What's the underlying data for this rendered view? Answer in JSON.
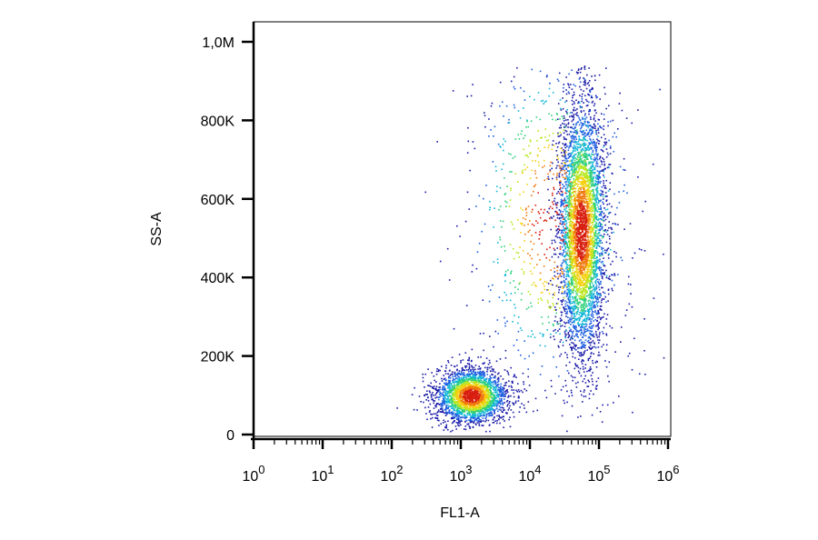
{
  "chart_data": {
    "type": "scatter",
    "subtype": "flow-cytometry-density-dot-plot",
    "xlabel": "FL1-A",
    "ylabel": "SS-A",
    "x_scale": "log",
    "y_scale": "linear",
    "xlim": [
      1,
      1000000
    ],
    "ylim": [
      0,
      1000000
    ],
    "x_tick_values": [
      1,
      10,
      100,
      1000,
      10000,
      100000,
      1000000
    ],
    "x_tick_labels": [
      {
        "base": "10",
        "exp": "0"
      },
      {
        "base": "10",
        "exp": "1"
      },
      {
        "base": "10",
        "exp": "2"
      },
      {
        "base": "10",
        "exp": "3"
      },
      {
        "base": "10",
        "exp": "4"
      },
      {
        "base": "10",
        "exp": "5"
      },
      {
        "base": "10",
        "exp": "6"
      }
    ],
    "y_tick_values": [
      0,
      200000,
      400000,
      600000,
      800000,
      1000000
    ],
    "y_tick_labels": [
      "0",
      "200K",
      "400K",
      "600K",
      "800K",
      "1,0M"
    ],
    "grid": false,
    "density_colormap": [
      "#1a1aa8",
      "#1f5fe0",
      "#15b6d8",
      "#2fd07a",
      "#b8e61e",
      "#f5d010",
      "#f07a10",
      "#d81e10"
    ],
    "populations": [
      {
        "name": "",
        "center_x": 1400,
        "center_y": 100000,
        "spread_log10_x": 0.26,
        "spread_y": 35000,
        "count": 2600
      },
      {
        "name": "",
        "center_x": 55000,
        "center_y": 520000,
        "spread_log10_x": 0.17,
        "spread_y": 160000,
        "count": 4200
      },
      {
        "name": "",
        "center_x": 20000,
        "center_y": 550000,
        "spread_log10_x": 0.6,
        "spread_y": 220000,
        "count": 900
      }
    ]
  }
}
